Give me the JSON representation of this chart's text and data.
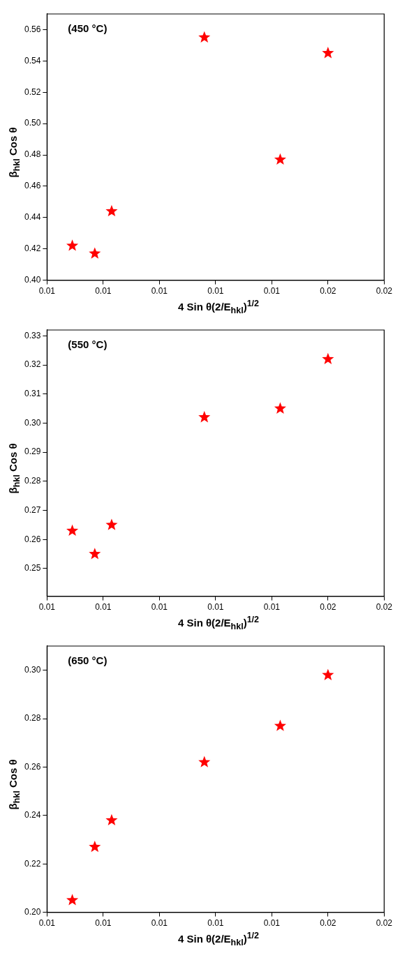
{
  "chart_data": [
    {
      "type": "scatter",
      "title": "(450 °C)",
      "xlabel": "4 Sin θ(2/E$_{hkl}$)$^{1/2}$",
      "ylabel": "β$_{hkl}$ Cos θ",
      "marker": "star",
      "grid": false,
      "legend": false,
      "series": [
        {
          "color": "#ff0000",
          "x": [
            0.0069,
            0.0077,
            0.0083,
            0.0116,
            0.0143,
            0.016
          ],
          "values": [
            0.422,
            0.417,
            0.444,
            0.555,
            0.477,
            0.545
          ]
        }
      ],
      "xlim": [
        0.006,
        0.018
      ],
      "xticks": [
        {
          "value": 0.006,
          "label": "0.01"
        },
        {
          "value": 0.008,
          "label": "0.01"
        },
        {
          "value": 0.01,
          "label": "0.01"
        },
        {
          "value": 0.012,
          "label": "0.01"
        },
        {
          "value": 0.014,
          "label": "0.01"
        },
        {
          "value": 0.016,
          "label": "0.02"
        },
        {
          "value": 0.018,
          "label": "0.02"
        }
      ],
      "ylim": [
        0.4,
        0.57
      ],
      "yticks": [
        {
          "value": 0.4,
          "label": "0.40"
        },
        0.42,
        0.44,
        0.46,
        0.48,
        {
          "value": 0.5,
          "label": "0.50"
        },
        0.52,
        0.54,
        0.56
      ]
    },
    {
      "type": "scatter",
      "title": "(550 °C)",
      "xlabel": "4 Sin θ(2/E$_{hkl}$)$^{1/2}$",
      "ylabel": "β$_{hkl}$ Cos θ",
      "marker": "star",
      "grid": false,
      "legend": false,
      "series": [
        {
          "color": "#ff0000",
          "x": [
            0.0069,
            0.0077,
            0.0083,
            0.0116,
            0.0143,
            0.016
          ],
          "values": [
            0.263,
            0.255,
            0.265,
            0.302,
            0.305,
            0.322
          ]
        }
      ],
      "xlim": [
        0.006,
        0.018
      ],
      "xticks": [
        {
          "value": 0.006,
          "label": "0.01"
        },
        {
          "value": 0.008,
          "label": "0.01"
        },
        {
          "value": 0.01,
          "label": "0.01"
        },
        {
          "value": 0.012,
          "label": "0.01"
        },
        {
          "value": 0.014,
          "label": "0.01"
        },
        {
          "value": 0.016,
          "label": "0.02"
        },
        {
          "value": 0.018,
          "label": "0.02"
        }
      ],
      "ylim": [
        0.2405,
        0.332
      ],
      "yticks": [
        0.25,
        {
          "value": 0.26,
          "label": "0.26"
        },
        0.27,
        0.28,
        0.29,
        {
          "value": 0.3,
          "label": "0.30"
        },
        0.31,
        0.32,
        0.33
      ]
    },
    {
      "type": "scatter",
      "title": "(650 °C)",
      "xlabel": "4 Sin θ(2/E$_{hkl}$)$^{1/2}$",
      "ylabel": "β$_{hkl}$ Cos θ",
      "marker": "star",
      "grid": false,
      "legend": false,
      "series": [
        {
          "color": "#ff0000",
          "x": [
            0.0069,
            0.0077,
            0.0083,
            0.0116,
            0.0143,
            0.016
          ],
          "values": [
            0.205,
            0.227,
            0.238,
            0.262,
            0.277,
            0.298
          ]
        }
      ],
      "xlim": [
        0.006,
        0.018
      ],
      "xticks": [
        {
          "value": 0.006,
          "label": "0.01"
        },
        {
          "value": 0.008,
          "label": "0.01"
        },
        {
          "value": 0.01,
          "label": "0.01"
        },
        {
          "value": 0.012,
          "label": "0.01"
        },
        {
          "value": 0.014,
          "label": "0.01"
        },
        {
          "value": 0.016,
          "label": "0.02"
        },
        {
          "value": 0.018,
          "label": "0.02"
        }
      ],
      "ylim": [
        0.2,
        0.31
      ],
      "yticks": [
        {
          "value": 0.2,
          "label": "0.20"
        },
        0.22,
        0.24,
        0.26,
        0.28,
        {
          "value": 0.3,
          "label": "0.30"
        }
      ]
    }
  ]
}
